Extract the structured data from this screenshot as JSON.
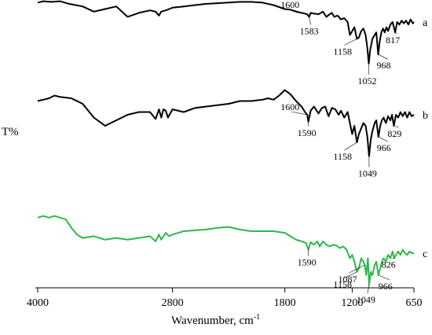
{
  "chart_data": {
    "type": "line",
    "title": "",
    "ylabel": "T%",
    "xlabel": "Wavenumber, cm",
    "xlabel_superscript": "-1",
    "xlim": [
      4000,
      650
    ],
    "x_ticks": [
      {
        "value": 4000,
        "label": "4000"
      },
      {
        "value": 2800,
        "label": "2800"
      },
      {
        "value": 1800,
        "label": "1800"
      },
      {
        "value": 1200,
        "label": "1200"
      },
      {
        "value": 650,
        "label": "650"
      }
    ],
    "colors": {
      "a": "#000000",
      "b": "#000000",
      "c": "#2db84b"
    },
    "series": [
      {
        "name": "a",
        "x": [
          4000,
          3950,
          3880,
          3800,
          3720,
          3600,
          3500,
          3400,
          3300,
          3200,
          3100,
          3000,
          2950,
          2920,
          2900,
          2860,
          2830,
          2800,
          2700,
          2600,
          2500,
          2400,
          2300,
          2200,
          2100,
          2000,
          1900,
          1800,
          1750,
          1700,
          1650,
          1620,
          1600,
          1583,
          1570,
          1540,
          1500,
          1460,
          1430,
          1400,
          1380,
          1360,
          1330,
          1300,
          1270,
          1240,
          1220,
          1200,
          1180,
          1158,
          1140,
          1120,
          1100,
          1080,
          1065,
          1052,
          1040,
          1020,
          1000,
          985,
          968,
          955,
          940,
          925,
          910,
          895,
          880,
          860,
          840,
          817,
          800,
          780,
          760,
          740,
          720,
          700,
          680,
          660,
          650
        ],
        "y": [
          95,
          96,
          95.5,
          96,
          94,
          92,
          88,
          90,
          92,
          84,
          87,
          89,
          88,
          85,
          88,
          89,
          90,
          91,
          92,
          93,
          94,
          94.5,
          95,
          95.5,
          95.5,
          95,
          93,
          90,
          89.5,
          88,
          87,
          86.5,
          86,
          84,
          87,
          86.5,
          86,
          88,
          84,
          86,
          87,
          84,
          85,
          82,
          83,
          80,
          70,
          73,
          76,
          67,
          68,
          73,
          75,
          70,
          60,
          48,
          58,
          67,
          70,
          72,
          55,
          65,
          72,
          75,
          72,
          76,
          73,
          78,
          80,
          72,
          80,
          78,
          81,
          79,
          81,
          78,
          82,
          79,
          80
        ]
      },
      {
        "name": "b",
        "x": [
          4000,
          3950,
          3900,
          3850,
          3800,
          3700,
          3600,
          3500,
          3400,
          3300,
          3200,
          3100,
          3000,
          2950,
          2920,
          2900,
          2880,
          2860,
          2840,
          2800,
          2700,
          2600,
          2500,
          2400,
          2300,
          2200,
          2100,
          2000,
          1950,
          1900,
          1850,
          1800,
          1750,
          1700,
          1650,
          1620,
          1600,
          1590,
          1570,
          1540,
          1500,
          1470,
          1440,
          1410,
          1380,
          1350,
          1320,
          1300,
          1270,
          1240,
          1220,
          1200,
          1180,
          1158,
          1140,
          1120,
          1100,
          1080,
          1065,
          1049,
          1035,
          1020,
          1000,
          985,
          966,
          950,
          935,
          920,
          900,
          880,
          860,
          845,
          829,
          810,
          790,
          770,
          750,
          730,
          710,
          690,
          670,
          650
        ],
        "y": [
          78,
          79,
          80,
          82,
          81,
          80,
          76,
          66,
          60,
          64,
          68,
          70,
          70,
          65,
          72,
          66,
          72,
          71,
          66,
          72,
          70,
          73,
          74,
          75,
          76,
          78,
          78,
          79,
          80,
          79,
          82,
          86,
          83,
          78,
          74,
          70,
          68,
          63,
          71,
          74,
          69,
          73,
          74,
          67,
          73,
          72,
          68,
          71,
          66,
          70,
          62,
          54,
          60,
          48,
          54,
          58,
          62,
          60,
          52,
          38,
          50,
          56,
          62,
          64,
          52,
          60,
          64,
          66,
          62,
          67,
          64,
          68,
          60,
          68,
          66,
          70,
          67,
          70,
          66,
          70,
          67,
          68
        ]
      },
      {
        "name": "c",
        "x": [
          4000,
          3950,
          3900,
          3850,
          3800,
          3750,
          3700,
          3650,
          3600,
          3500,
          3400,
          3300,
          3200,
          3100,
          3000,
          2950,
          2920,
          2900,
          2860,
          2830,
          2800,
          2700,
          2600,
          2500,
          2400,
          2300,
          2200,
          2100,
          2000,
          1900,
          1800,
          1750,
          1700,
          1650,
          1610,
          1590,
          1570,
          1540,
          1510,
          1490,
          1460,
          1430,
          1400,
          1370,
          1340,
          1310,
          1280,
          1250,
          1220,
          1200,
          1180,
          1158,
          1140,
          1120,
          1100,
          1087,
          1075,
          1060,
          1049,
          1035,
          1020,
          1000,
          985,
          966,
          950,
          935,
          920,
          900,
          880,
          860,
          840,
          826,
          810,
          790,
          770,
          750,
          730,
          710,
          690,
          670,
          650
        ],
        "y": [
          48,
          49,
          48,
          49,
          48,
          47,
          42,
          38,
          36,
          37,
          35,
          36,
          35,
          36,
          37,
          34,
          38,
          35,
          39,
          37,
          38,
          40,
          40.5,
          41,
          42,
          42.5,
          41,
          40,
          40,
          40,
          39,
          37,
          35,
          34,
          33,
          29,
          33.5,
          32,
          34,
          31,
          34,
          32,
          31,
          32,
          31.5,
          30,
          31,
          29,
          24,
          26,
          22,
          16,
          18,
          24,
          22,
          20,
          14,
          24,
          8,
          16,
          14,
          20,
          22,
          14,
          18,
          22,
          24,
          22,
          26,
          24,
          28,
          24,
          26,
          28,
          26,
          29,
          27,
          26,
          28,
          27,
          27
        ]
      }
    ],
    "annotations": [
      {
        "series": "a",
        "label": "1600",
        "x": 1600
      },
      {
        "series": "a",
        "label": "1583",
        "x": 1583
      },
      {
        "series": "a",
        "label": "1158",
        "x": 1158
      },
      {
        "series": "a",
        "label": "1052",
        "x": 1052
      },
      {
        "series": "a",
        "label": "968",
        "x": 968
      },
      {
        "series": "a",
        "label": "817",
        "x": 817
      },
      {
        "series": "b",
        "label": "1600",
        "x": 1600
      },
      {
        "series": "b",
        "label": "1590",
        "x": 1590
      },
      {
        "series": "b",
        "label": "1158",
        "x": 1158
      },
      {
        "series": "b",
        "label": "1049",
        "x": 1049
      },
      {
        "series": "b",
        "label": "966",
        "x": 966
      },
      {
        "series": "b",
        "label": "829",
        "x": 829
      },
      {
        "series": "c",
        "label": "1590",
        "x": 1590
      },
      {
        "series": "c",
        "label": "1158",
        "x": 1158
      },
      {
        "series": "c",
        "label": "1087",
        "x": 1087
      },
      {
        "series": "c",
        "label": "1049",
        "x": 1049
      },
      {
        "series": "c",
        "label": "966",
        "x": 966
      },
      {
        "series": "c",
        "label": "826",
        "x": 826
      }
    ]
  }
}
